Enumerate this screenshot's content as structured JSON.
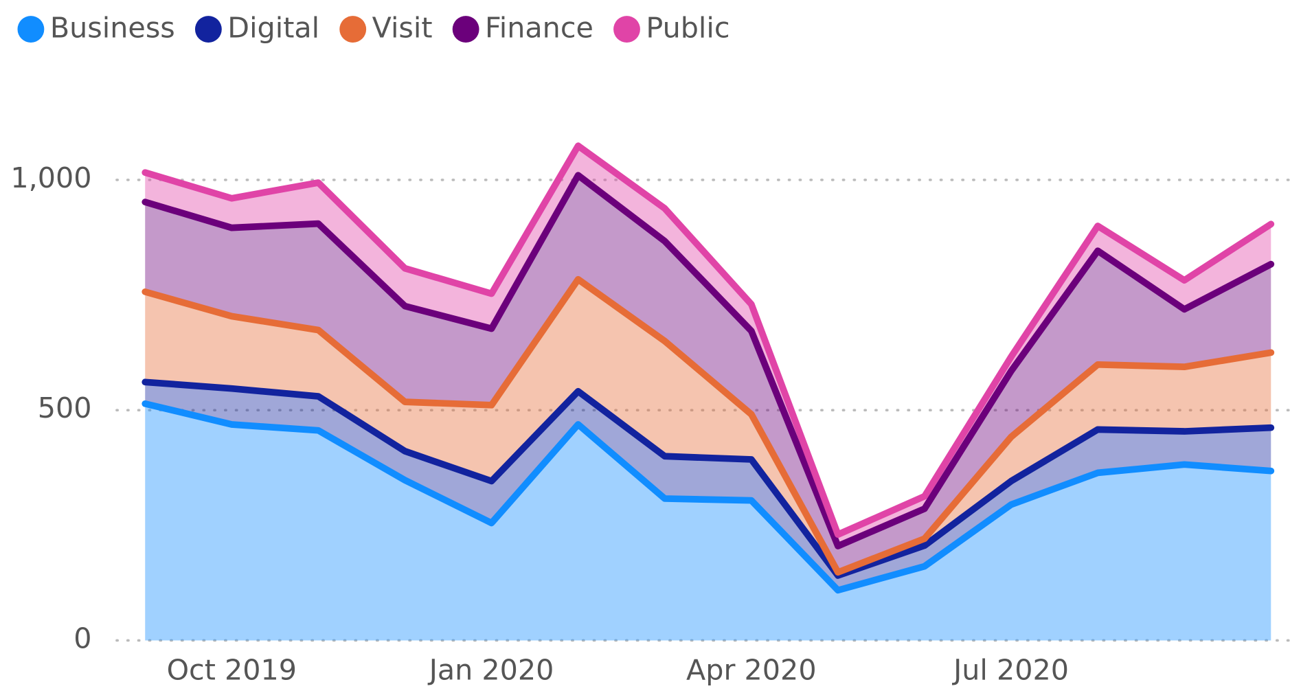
{
  "chart_data": {
    "type": "stacked_area",
    "categories": [
      null,
      "Oct 2019",
      null,
      null,
      "Jan 2020",
      null,
      null,
      "Apr 2020",
      null,
      null,
      "Jul 2020",
      null,
      null,
      null
    ],
    "series": [
      {
        "name": "Business",
        "color": "#118DFF",
        "values": [
          514,
          469,
          456,
          348,
          255,
          469,
          308,
          304,
          109,
          161,
          295,
          364,
          382,
          368
        ]
      },
      {
        "name": "Digital",
        "color": "#12239E",
        "values": [
          47,
          78,
          74,
          63,
          91,
          72,
          92,
          89,
          32,
          45,
          51,
          94,
          72,
          94
        ]
      },
      {
        "name": "Visit",
        "color": "#E66C37",
        "values": [
          196,
          157,
          144,
          107,
          165,
          243,
          250,
          98,
          7,
          15,
          96,
          141,
          140,
          163
        ]
      },
      {
        "name": "Finance",
        "color": "#6B007B",
        "values": [
          195,
          192,
          231,
          208,
          166,
          226,
          217,
          181,
          57,
          65,
          143,
          247,
          125,
          192
        ]
      },
      {
        "name": "Public",
        "color": "#E044A7",
        "values": [
          64,
          64,
          89,
          82,
          76,
          64,
          71,
          58,
          25,
          27,
          31,
          54,
          63,
          87
        ]
      }
    ],
    "ylim": [
      0,
      1100
    ],
    "yticks": [
      0,
      500,
      {
        "value": 1000,
        "label": "1,000"
      }
    ],
    "grid": true,
    "legend": "top-left"
  }
}
